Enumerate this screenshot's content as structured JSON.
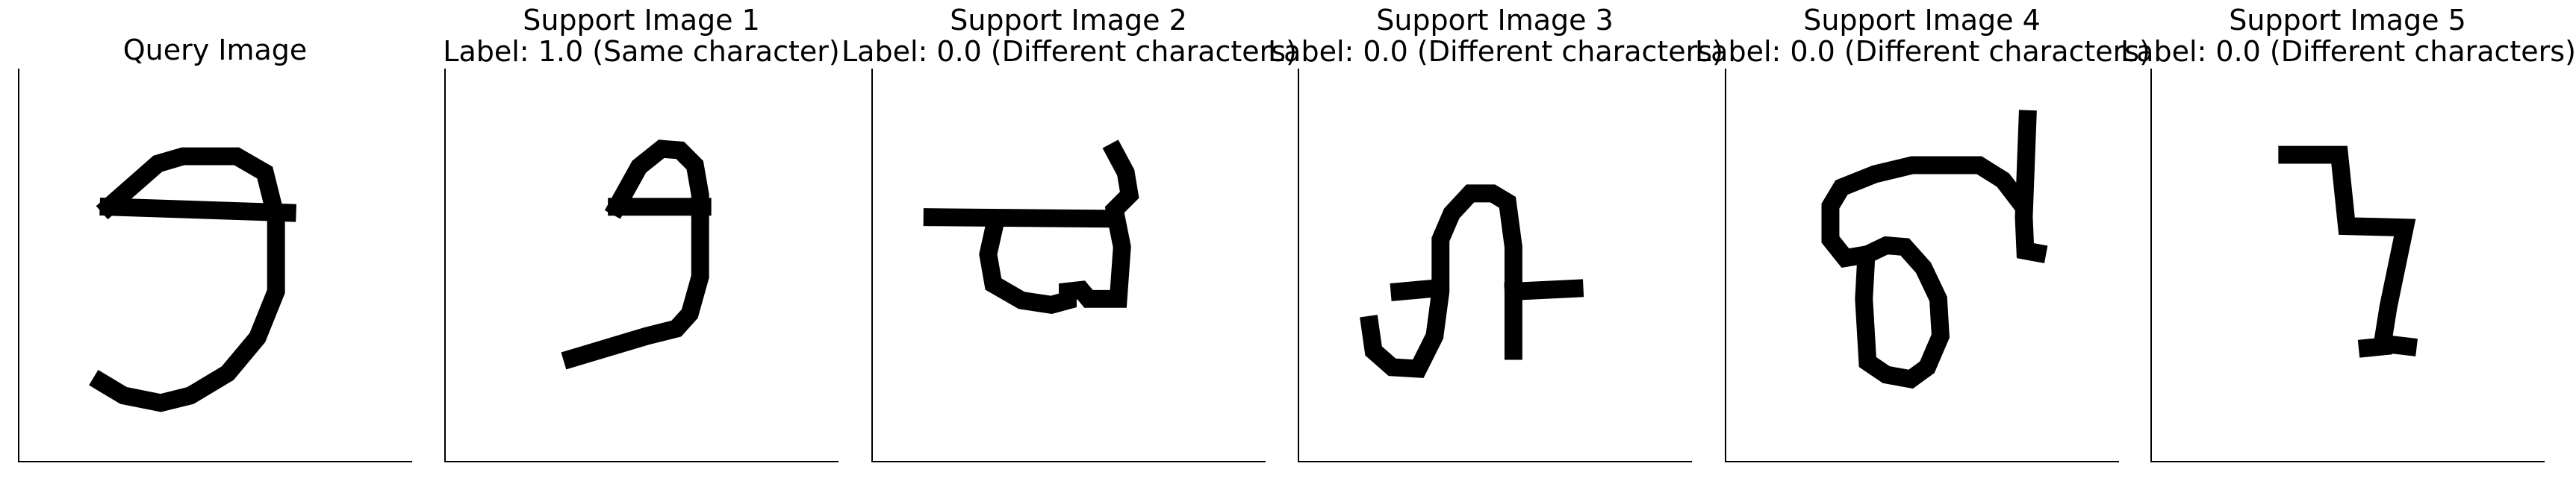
{
  "panels": [
    {
      "title": "Query Image",
      "label": ""
    },
    {
      "title": "Support Image 1",
      "label": "Label: 1.0 (Same character)"
    },
    {
      "title": "Support Image 2",
      "label": "Label: 0.0 (Different characters)"
    },
    {
      "title": "Support Image 3",
      "label": "Label: 0.0 (Different characters)"
    },
    {
      "title": "Support Image 4",
      "label": "Label: 0.0 (Different characters)"
    },
    {
      "title": "Support Image 5",
      "label": "Label: 0.0 (Different characters)"
    }
  ]
}
